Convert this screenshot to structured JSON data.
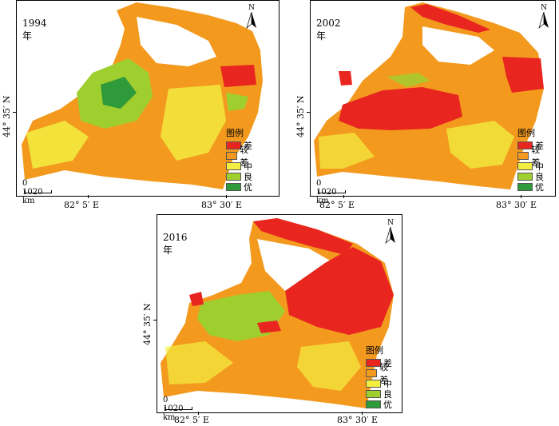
{
  "panels": [
    {
      "year_label": "1994年",
      "key": "p1994"
    },
    {
      "year_label": "2002年",
      "key": "p2002"
    },
    {
      "year_label": "2016年",
      "key": "p2016"
    }
  ],
  "legend": {
    "title": "图例",
    "items": [
      {
        "label": "差",
        "color": "#e8261f"
      },
      {
        "label": "较差",
        "color": "#f39a1e"
      },
      {
        "label": "中",
        "color": "#f2ef40"
      },
      {
        "label": "良",
        "color": "#9fcf2f"
      },
      {
        "label": "优",
        "color": "#2f9a3a"
      }
    ]
  },
  "axes": {
    "x_ticks": [
      "82° 5′ E",
      "83° 30′ E"
    ],
    "y_tick": "44° 35′ N"
  },
  "north_arrow": "N",
  "scale_bar": {
    "ticks": [
      "0",
      "10",
      "20"
    ],
    "unit": "km"
  }
}
